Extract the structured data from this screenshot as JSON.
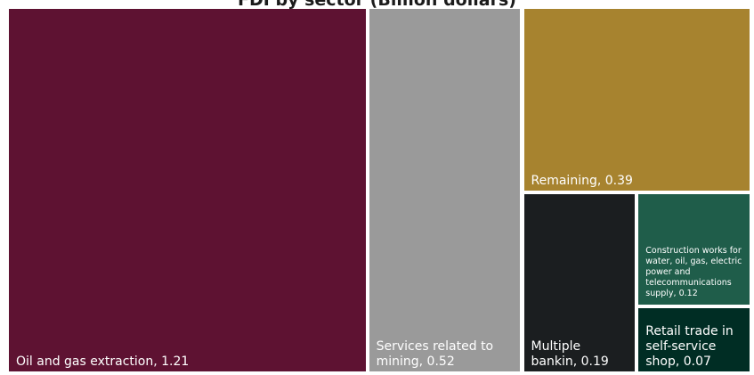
{
  "chart_data": {
    "type": "treemap",
    "title": "FDI by sector (Billion dollars)",
    "tiles": [
      {
        "name": "Oil and gas extraction",
        "value": 1.21,
        "label": "Oil and gas extraction, 1.21",
        "color": "#5e1232"
      },
      {
        "name": "Services related to mining",
        "value": 0.52,
        "label": "Services related to mining, 0.52",
        "color": "#9a9a9a"
      },
      {
        "name": "Remaining",
        "value": 0.39,
        "label": "Remaining, 0.39",
        "color": "#a7832f"
      },
      {
        "name": "Multiple bankin",
        "value": 0.19,
        "label": "Multiple bankin, 0.19",
        "color": "#1b1e20"
      },
      {
        "name": "Construction works for water, oil, gas, electric power and telecommunications supply",
        "value": 0.12,
        "label": "Construction works for water, oil, gas, electric power and telecommunications supply, 0.12",
        "color": "#1f5d4a"
      },
      {
        "name": "Retail trade in self-service shop",
        "value": 0.07,
        "label": "Retail trade in self-service shop, 0.07",
        "color": "#002d24"
      }
    ]
  }
}
